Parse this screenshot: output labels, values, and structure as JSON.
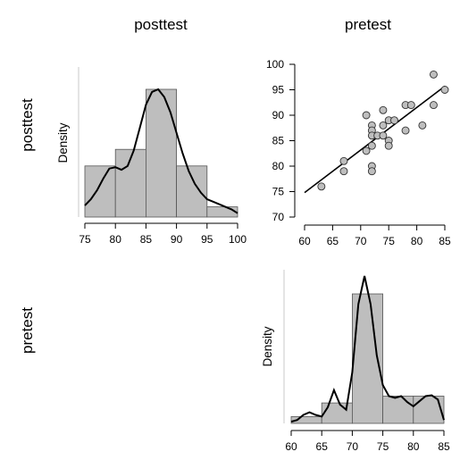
{
  "labels": {
    "col1": "posttest",
    "col2": "pretest",
    "row1": "posttest",
    "row2": "pretest",
    "density1": "Density",
    "density2": "Density"
  },
  "chart_data": [
    {
      "type": "bar",
      "panel": "posttest histogram",
      "ylabel": "Density",
      "xlim": [
        75,
        100
      ],
      "bins": [
        {
          "from": 75,
          "to": 80,
          "value": 0.04
        },
        {
          "from": 80,
          "to": 85,
          "value": 0.053
        },
        {
          "from": 85,
          "to": 90,
          "value": 0.1
        },
        {
          "from": 90,
          "to": 95,
          "value": 0.04
        },
        {
          "from": 95,
          "to": 100,
          "value": 0.008
        }
      ],
      "density_curve": {
        "x": [
          75,
          76,
          77,
          78,
          79,
          80,
          81,
          82,
          83,
          84,
          85,
          86,
          87,
          88,
          89,
          90,
          91,
          92,
          93,
          94,
          95,
          96,
          97,
          98,
          99,
          100
        ],
        "y": [
          0.009,
          0.014,
          0.021,
          0.03,
          0.038,
          0.039,
          0.037,
          0.04,
          0.052,
          0.07,
          0.088,
          0.098,
          0.1,
          0.094,
          0.082,
          0.066,
          0.05,
          0.036,
          0.026,
          0.019,
          0.014,
          0.012,
          0.01,
          0.008,
          0.006,
          0.003
        ]
      },
      "xticks": [
        75,
        80,
        85,
        90,
        95,
        100
      ]
    },
    {
      "type": "scatter",
      "panel": "posttest vs pretest",
      "xlim": [
        60,
        85
      ],
      "ylim": [
        70,
        100
      ],
      "xticks": [
        60,
        65,
        70,
        75,
        80,
        85
      ],
      "yticks": [
        70,
        75,
        80,
        85,
        90,
        95,
        100
      ],
      "points": [
        {
          "x": 63,
          "y": 76
        },
        {
          "x": 67,
          "y": 81
        },
        {
          "x": 67,
          "y": 79
        },
        {
          "x": 71,
          "y": 90
        },
        {
          "x": 71,
          "y": 83
        },
        {
          "x": 72,
          "y": 88
        },
        {
          "x": 72,
          "y": 87
        },
        {
          "x": 72,
          "y": 86
        },
        {
          "x": 72,
          "y": 84
        },
        {
          "x": 72,
          "y": 80
        },
        {
          "x": 72,
          "y": 79
        },
        {
          "x": 73,
          "y": 86
        },
        {
          "x": 74,
          "y": 91
        },
        {
          "x": 74,
          "y": 88
        },
        {
          "x": 74,
          "y": 86
        },
        {
          "x": 75,
          "y": 89
        },
        {
          "x": 75,
          "y": 85
        },
        {
          "x": 75,
          "y": 84
        },
        {
          "x": 76,
          "y": 89
        },
        {
          "x": 78,
          "y": 92
        },
        {
          "x": 78,
          "y": 87
        },
        {
          "x": 79,
          "y": 92
        },
        {
          "x": 81,
          "y": 88
        },
        {
          "x": 83,
          "y": 98
        },
        {
          "x": 83,
          "y": 92
        },
        {
          "x": 85,
          "y": 95
        }
      ],
      "fit_line": {
        "x": [
          60,
          85
        ],
        "y": [
          74.8,
          95.7
        ]
      }
    },
    {
      "type": "bar",
      "panel": "pretest histogram",
      "ylabel": "Density",
      "xlim": [
        60,
        85
      ],
      "bins": [
        {
          "from": 60,
          "to": 65,
          "value": 0.008
        },
        {
          "from": 65,
          "to": 70,
          "value": 0.024
        },
        {
          "from": 70,
          "to": 75,
          "value": 0.152
        },
        {
          "from": 75,
          "to": 80,
          "value": 0.032
        },
        {
          "from": 80,
          "to": 85,
          "value": 0.032
        }
      ],
      "density_curve": {
        "x": [
          60,
          61,
          62,
          63,
          64,
          65,
          66,
          67,
          68,
          69,
          70,
          71,
          72,
          73,
          74,
          75,
          76,
          77,
          78,
          79,
          80,
          81,
          82,
          83,
          84,
          85
        ],
        "y": [
          0.002,
          0.004,
          0.01,
          0.013,
          0.01,
          0.008,
          0.019,
          0.039,
          0.022,
          0.016,
          0.06,
          0.14,
          0.173,
          0.14,
          0.08,
          0.045,
          0.032,
          0.03,
          0.032,
          0.025,
          0.02,
          0.026,
          0.032,
          0.033,
          0.028,
          0.004
        ]
      },
      "xticks": [
        60,
        65,
        70,
        75,
        80,
        85
      ]
    }
  ]
}
